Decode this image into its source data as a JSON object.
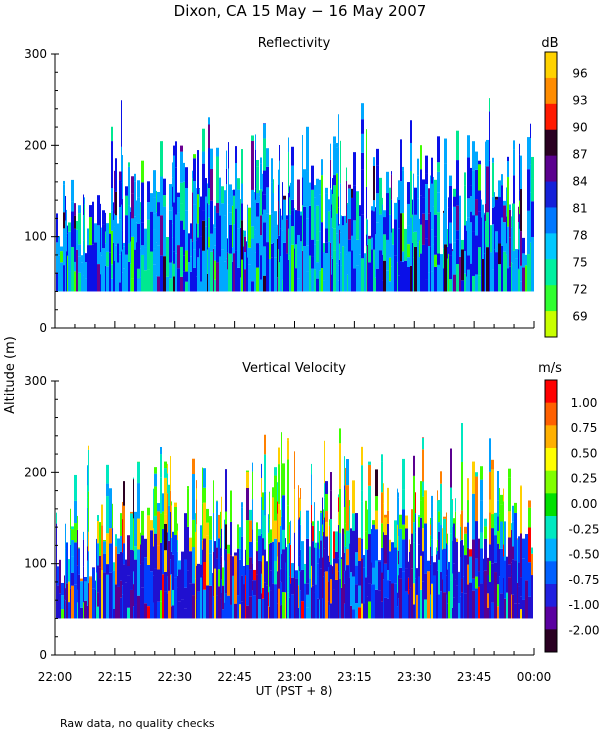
{
  "figure": {
    "title": "Dixon, CA 15 May − 16 May 2007",
    "footnote": "Raw data, no quality checks",
    "ylabel": "Altitude (m)",
    "xlabel": "UT  (PST + 8)"
  },
  "chart_data": [
    {
      "type": "heatmap",
      "title": "Reflectivity",
      "colorbar_unit": "dB",
      "xlabel": "UT  (PST + 8)",
      "ylabel": "Altitude (m)",
      "x_ticks": [
        "22:00",
        "22:15",
        "22:30",
        "22:45",
        "23:00",
        "23:15",
        "23:30",
        "23:45",
        "00:00"
      ],
      "x_minutes": [
        0,
        120
      ],
      "y_ticks": [
        0,
        100,
        200,
        300
      ],
      "ylim": [
        0,
        300
      ],
      "data_floor_m": 40,
      "colorbar_ticks": [
        "96",
        "93",
        "90",
        "87",
        "84",
        "81",
        "78",
        "75",
        "72",
        "69"
      ],
      "colorbar_colors": [
        "#ffd200",
        "#ff7f00",
        "#ff0000",
        "#2a0022",
        "#6a0090",
        "#0a10e8",
        "#00a8ff",
        "#00e890",
        "#40ff00",
        "#d8ff00"
      ],
      "colorbar_band_colors": [
        "#ffd200",
        "#ff8c00",
        "#ff1a00",
        "#2a0022",
        "#5a008e",
        "#1420d8",
        "#0078ff",
        "#00c8ff",
        "#00f0a0",
        "#30ff30",
        "#c8ff00"
      ]
    },
    {
      "type": "heatmap",
      "title": "Vertical Velocity",
      "colorbar_unit": "m/s",
      "xlabel": "UT  (PST + 8)",
      "ylabel": "Altitude (m)",
      "x_ticks": [
        "22:00",
        "22:15",
        "22:30",
        "22:45",
        "23:00",
        "23:15",
        "23:30",
        "23:45",
        "00:00"
      ],
      "x_minutes": [
        0,
        120
      ],
      "y_ticks": [
        0,
        100,
        200,
        300
      ],
      "ylim": [
        0,
        300
      ],
      "data_floor_m": 40,
      "colorbar_ticks": [
        "1.00",
        "0.75",
        "0.50",
        "0.25",
        "0.00",
        "-0.25",
        "-0.50",
        "-0.75",
        "-1.00",
        "-2.00"
      ],
      "colorbar_colors": [
        "#ff0000",
        "#ff8000",
        "#ffd000",
        "#40ff00",
        "#00e8c0",
        "#00a0ff",
        "#0040ff",
        "#2010d0",
        "#5a0090",
        "#2a0022"
      ],
      "colorbar_band_colors": [
        "#ff0000",
        "#ff6000",
        "#ffb000",
        "#ffff00",
        "#80ff00",
        "#00e000",
        "#00e8c0",
        "#00b0ff",
        "#0060ff",
        "#2020e0",
        "#5a00a0",
        "#2a0022"
      ]
    }
  ]
}
